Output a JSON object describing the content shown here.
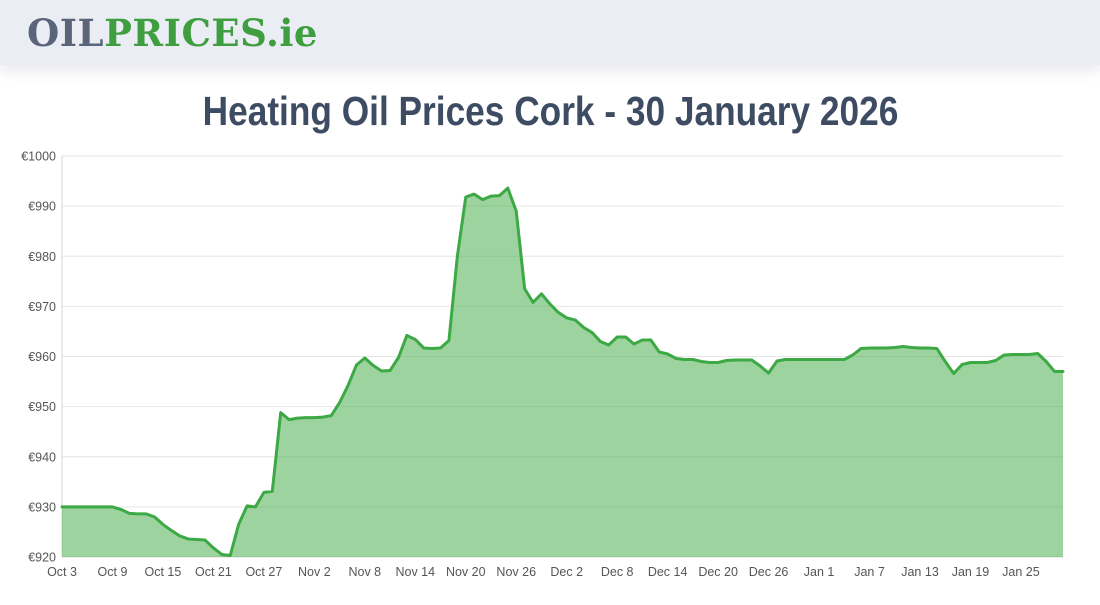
{
  "header": {
    "logo": {
      "part_gray": "OIL",
      "part_green": "PRICES",
      "part_tld": ".ie"
    }
  },
  "colors": {
    "header_bg": "#eaedf4",
    "logo_gray": "#5b6579",
    "logo_green": "#3f9e3f",
    "title_text": "#3d4c63",
    "line_green": "#3ca945",
    "area_fill": "#4caf50",
    "area_fill_opacity": 0.55,
    "grid_line": "#e6e6e6",
    "axis_line": "#d4d4d4",
    "tick_text": "#555555",
    "page_bg": "#ffffff"
  },
  "chart_data": {
    "type": "area",
    "title": "Heating Oil Prices Cork - 30 January 2026",
    "currency_prefix": "€",
    "ylim": [
      920,
      1000
    ],
    "y_tick_step": 10,
    "grid": "horizontal only",
    "legend": "none",
    "x_description": "daily price, index = days since Oct 3 (ends Jan 30)",
    "x_ticks": [
      {
        "label": "Oct 3",
        "index": 0
      },
      {
        "label": "Oct 9",
        "index": 6
      },
      {
        "label": "Oct 15",
        "index": 12
      },
      {
        "label": "Oct 21",
        "index": 18
      },
      {
        "label": "Oct 27",
        "index": 24
      },
      {
        "label": "Nov 2",
        "index": 30
      },
      {
        "label": "Nov 8",
        "index": 36
      },
      {
        "label": "Nov 14",
        "index": 42
      },
      {
        "label": "Nov 20",
        "index": 48
      },
      {
        "label": "Nov 26",
        "index": 54
      },
      {
        "label": "Dec 2",
        "index": 60
      },
      {
        "label": "Dec 8",
        "index": 66
      },
      {
        "label": "Dec 14",
        "index": 72
      },
      {
        "label": "Dec 20",
        "index": 78
      },
      {
        "label": "Dec 26",
        "index": 84
      },
      {
        "label": "Jan 1",
        "index": 90
      },
      {
        "label": "Jan 7",
        "index": 96
      },
      {
        "label": "Jan 13",
        "index": 102
      },
      {
        "label": "Jan 19",
        "index": 108
      },
      {
        "label": "Jan 25",
        "index": 114
      }
    ],
    "values": [
      930,
      930,
      930,
      930,
      930,
      930,
      930,
      929.5,
      928.7,
      928.6,
      928.6,
      928,
      926.5,
      925.3,
      924.2,
      923.6,
      923.5,
      923.4,
      921.8,
      920.5,
      920.3,
      926.5,
      930.2,
      930,
      932.9,
      933.1,
      948.8,
      947.4,
      947.7,
      947.8,
      947.8,
      947.9,
      948.2,
      950.8,
      954.2,
      958.3,
      959.7,
      958.2,
      957.1,
      957.2,
      959.8,
      964.2,
      963.4,
      961.7,
      961.6,
      961.7,
      963.2,
      980,
      991.8,
      992.4,
      991.3,
      992,
      992.1,
      993.6,
      989,
      973.5,
      970.8,
      972.5,
      970.5,
      968.8,
      967.7,
      967.3,
      965.8,
      964.8,
      963,
      962.3,
      963.9,
      963.9,
      962.5,
      963.3,
      963.3,
      960.9,
      960.5,
      959.6,
      959.4,
      959.4,
      959,
      958.8,
      958.8,
      959.2,
      959.3,
      959.3,
      959.3,
      958.1,
      956.7,
      959.1,
      959.4,
      959.4,
      959.4,
      959.4,
      959.4,
      959.4,
      959.4,
      959.4,
      960.3,
      961.6,
      961.7,
      961.7,
      961.7,
      961.8,
      962,
      961.8,
      961.7,
      961.7,
      961.6,
      959,
      956.6,
      958.4,
      958.8,
      958.8,
      958.8,
      959.2,
      960.3,
      960.4,
      960.4,
      960.4,
      960.6,
      959,
      957,
      957
    ]
  }
}
